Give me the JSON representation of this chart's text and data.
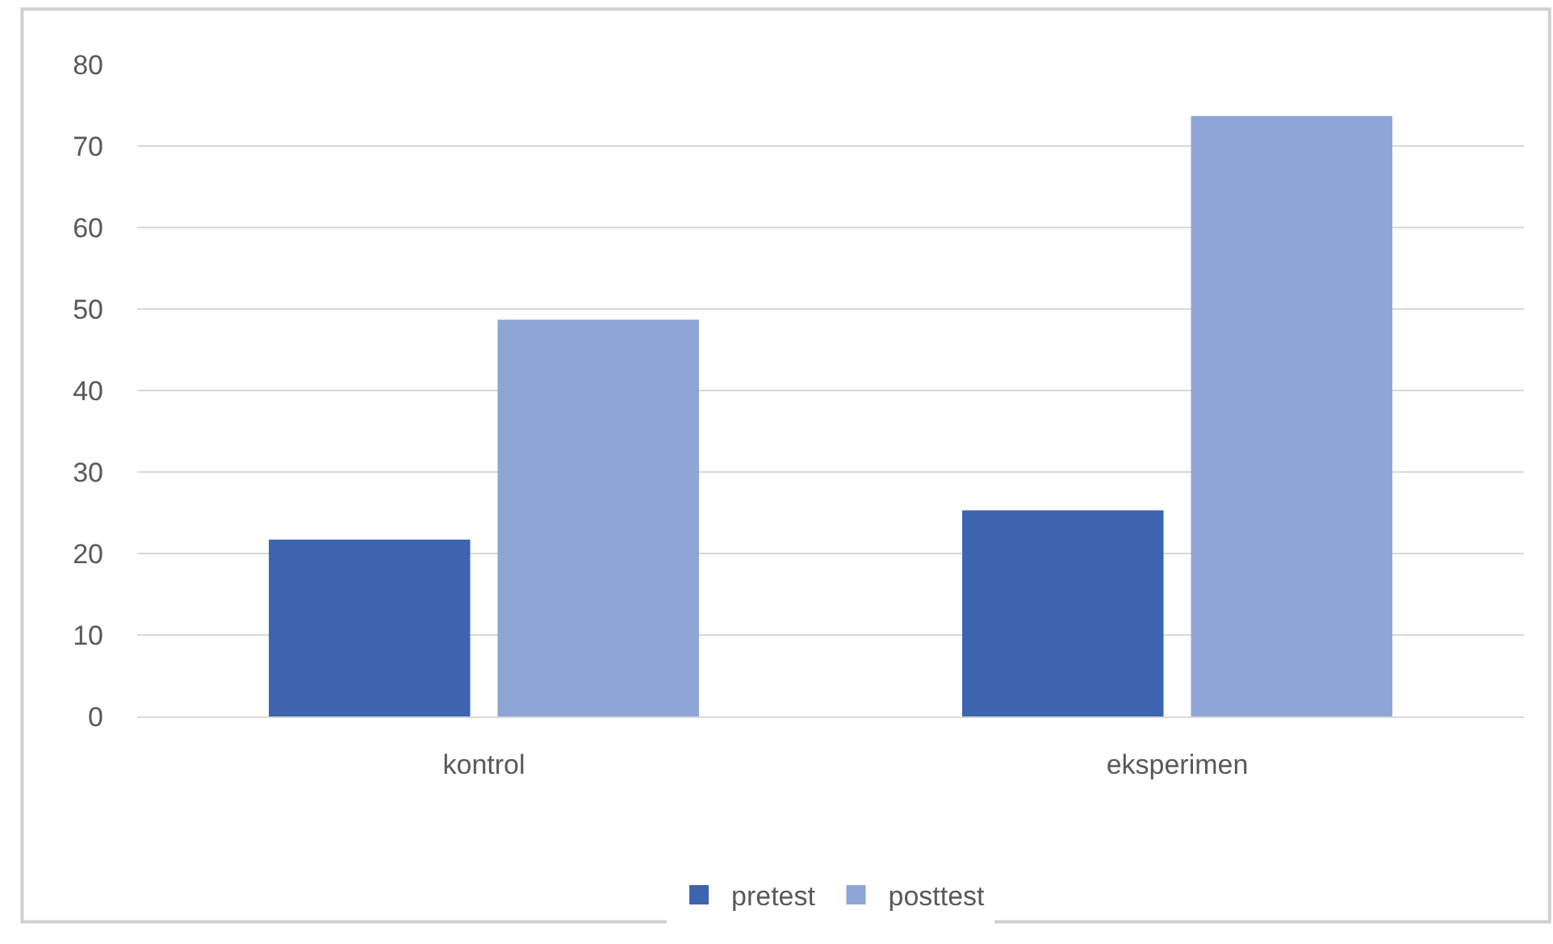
{
  "chart_data": {
    "type": "bar",
    "categories": [
      "kontrol",
      "eksperimen"
    ],
    "series": [
      {
        "name": "pretest",
        "color": "#3d64ae",
        "values": [
          21.7,
          25.3
        ]
      },
      {
        "name": "posttest",
        "color": "#8fa5d6",
        "values": [
          48.7,
          73.7
        ]
      }
    ],
    "ylim": [
      0,
      80
    ],
    "yticks": [
      0,
      10,
      20,
      30,
      40,
      50,
      60,
      70,
      80
    ],
    "grid": "y",
    "legend": "bottom"
  }
}
